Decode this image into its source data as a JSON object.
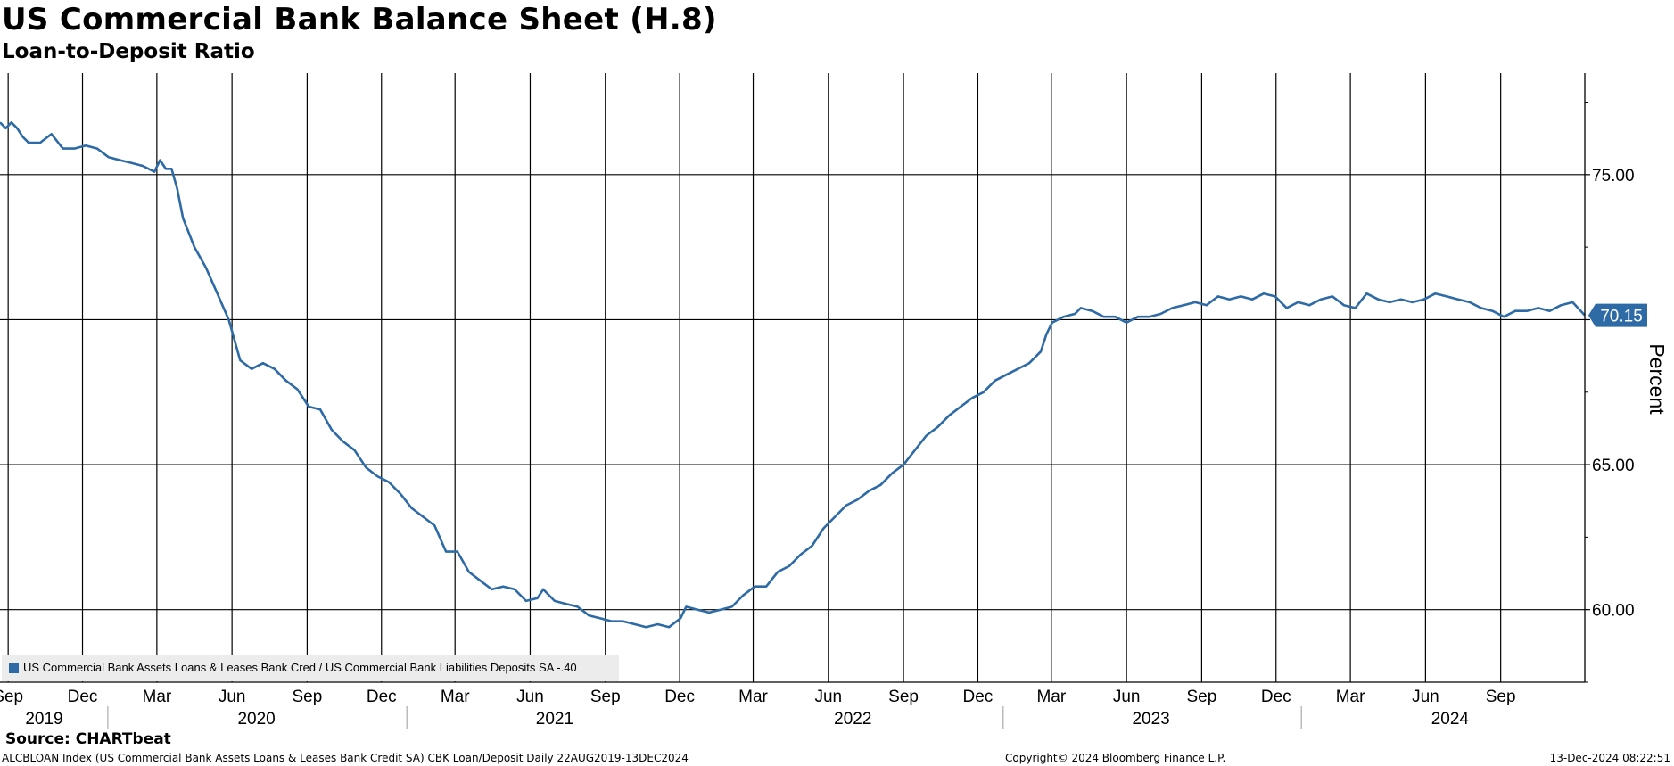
{
  "header": {
    "title": "US Commercial Bank Balance Sheet (H.8)",
    "subtitle": "Loan-to-Deposit Ratio"
  },
  "footer": {
    "source": "Source: CHARTbeat",
    "left": "ALCBLOAN Index (US Commercial Bank Assets Loans & Leases Bank Credit SA) CBK Loan/Deposit  Daily 22AUG2019-13DEC2024",
    "center": "Copyright© 2024 Bloomberg Finance L.P.",
    "right": "13-Dec-2024 08:22:51"
  },
  "colors": {
    "series": "#2e6ba6",
    "grid": "#000000",
    "legend_bg": "#ececec",
    "last_value_bg": "#2e6ba6"
  },
  "chart_data": {
    "type": "line",
    "ylabel": "Percent",
    "ylim": [
      57.5,
      78.5
    ],
    "yticks": [
      60,
      65,
      70,
      75
    ],
    "ytick_labels": [
      "60.00",
      "65.00",
      "70.00",
      "75.00"
    ],
    "xlim": [
      "2019-08-22",
      "2024-12-13"
    ],
    "month_ticks": [
      {
        "date": "2019-09-01",
        "label": "Sep"
      },
      {
        "date": "2019-12-01",
        "label": "Dec"
      },
      {
        "date": "2020-03-01",
        "label": "Mar"
      },
      {
        "date": "2020-06-01",
        "label": "Jun"
      },
      {
        "date": "2020-09-01",
        "label": "Sep"
      },
      {
        "date": "2020-12-01",
        "label": "Dec"
      },
      {
        "date": "2021-03-01",
        "label": "Mar"
      },
      {
        "date": "2021-06-01",
        "label": "Jun"
      },
      {
        "date": "2021-09-01",
        "label": "Sep"
      },
      {
        "date": "2021-12-01",
        "label": "Dec"
      },
      {
        "date": "2022-03-01",
        "label": "Mar"
      },
      {
        "date": "2022-06-01",
        "label": "Jun"
      },
      {
        "date": "2022-09-01",
        "label": "Sep"
      },
      {
        "date": "2022-12-01",
        "label": "Dec"
      },
      {
        "date": "2023-03-01",
        "label": "Mar"
      },
      {
        "date": "2023-06-01",
        "label": "Jun"
      },
      {
        "date": "2023-09-01",
        "label": "Sep"
      },
      {
        "date": "2023-12-01",
        "label": "Dec"
      },
      {
        "date": "2024-03-01",
        "label": "Mar"
      },
      {
        "date": "2024-06-01",
        "label": "Jun"
      },
      {
        "date": "2024-09-01",
        "label": "Sep"
      }
    ],
    "year_labels": [
      {
        "date": "2019-10-15",
        "label": "2019"
      },
      {
        "date": "2020-07-01",
        "label": "2020"
      },
      {
        "date": "2021-07-01",
        "label": "2021"
      },
      {
        "date": "2022-07-01",
        "label": "2022"
      },
      {
        "date": "2023-07-01",
        "label": "2023"
      },
      {
        "date": "2024-07-01",
        "label": "2024"
      }
    ],
    "year_separators": [
      "2020-01-01",
      "2021-01-01",
      "2022-01-01",
      "2023-01-01",
      "2024-01-01"
    ],
    "last_value_label": "70.15",
    "legend": "US Commercial Bank Assets Loans & Leases Bank Cred / US Commercial Bank Liabilities Deposits SA -.40",
    "series": [
      {
        "name": "US Commercial Bank Assets Loans & Leases Bank Cred / US Commercial Bank Liabilities Deposits SA -.40",
        "points": [
          [
            "2019-08-22",
            76.8
          ],
          [
            "2019-08-29",
            76.6
          ],
          [
            "2019-09-05",
            76.8
          ],
          [
            "2019-09-12",
            76.6
          ],
          [
            "2019-09-19",
            76.3
          ],
          [
            "2019-09-26",
            76.1
          ],
          [
            "2019-10-10",
            76.1
          ],
          [
            "2019-10-24",
            76.4
          ],
          [
            "2019-11-07",
            75.9
          ],
          [
            "2019-11-21",
            75.9
          ],
          [
            "2019-12-05",
            76.0
          ],
          [
            "2019-12-19",
            75.9
          ],
          [
            "2020-01-02",
            75.6
          ],
          [
            "2020-01-16",
            75.5
          ],
          [
            "2020-01-30",
            75.4
          ],
          [
            "2020-02-13",
            75.3
          ],
          [
            "2020-02-27",
            75.1
          ],
          [
            "2020-03-05",
            75.5
          ],
          [
            "2020-03-12",
            75.2
          ],
          [
            "2020-03-19",
            75.2
          ],
          [
            "2020-03-26",
            74.5
          ],
          [
            "2020-04-02",
            73.5
          ],
          [
            "2020-04-16",
            72.5
          ],
          [
            "2020-04-30",
            71.8
          ],
          [
            "2020-05-14",
            70.9
          ],
          [
            "2020-05-28",
            70.0
          ],
          [
            "2020-06-11",
            68.6
          ],
          [
            "2020-06-25",
            68.3
          ],
          [
            "2020-07-09",
            68.5
          ],
          [
            "2020-07-23",
            68.3
          ],
          [
            "2020-08-06",
            67.9
          ],
          [
            "2020-08-20",
            67.6
          ],
          [
            "2020-09-03",
            67.0
          ],
          [
            "2020-09-17",
            66.9
          ],
          [
            "2020-10-01",
            66.2
          ],
          [
            "2020-10-15",
            65.8
          ],
          [
            "2020-10-29",
            65.5
          ],
          [
            "2020-11-12",
            64.9
          ],
          [
            "2020-11-26",
            64.6
          ],
          [
            "2020-12-10",
            64.4
          ],
          [
            "2020-12-24",
            64.0
          ],
          [
            "2021-01-07",
            63.5
          ],
          [
            "2021-01-21",
            63.2
          ],
          [
            "2021-02-04",
            62.9
          ],
          [
            "2021-02-18",
            62.0
          ],
          [
            "2021-03-04",
            62.0
          ],
          [
            "2021-03-18",
            61.3
          ],
          [
            "2021-04-01",
            61.0
          ],
          [
            "2021-04-15",
            60.7
          ],
          [
            "2021-04-29",
            60.8
          ],
          [
            "2021-05-13",
            60.7
          ],
          [
            "2021-05-27",
            60.3
          ],
          [
            "2021-06-10",
            60.4
          ],
          [
            "2021-06-17",
            60.7
          ],
          [
            "2021-07-01",
            60.3
          ],
          [
            "2021-07-15",
            60.2
          ],
          [
            "2021-07-29",
            60.1
          ],
          [
            "2021-08-12",
            59.8
          ],
          [
            "2021-08-26",
            59.7
          ],
          [
            "2021-09-09",
            59.6
          ],
          [
            "2021-09-23",
            59.6
          ],
          [
            "2021-10-07",
            59.5
          ],
          [
            "2021-10-21",
            59.4
          ],
          [
            "2021-11-04",
            59.5
          ],
          [
            "2021-11-18",
            59.4
          ],
          [
            "2021-12-02",
            59.7
          ],
          [
            "2021-12-09",
            60.1
          ],
          [
            "2021-12-23",
            60.0
          ],
          [
            "2022-01-06",
            59.9
          ],
          [
            "2022-01-20",
            60.0
          ],
          [
            "2022-02-03",
            60.1
          ],
          [
            "2022-02-17",
            60.5
          ],
          [
            "2022-03-03",
            60.8
          ],
          [
            "2022-03-17",
            60.8
          ],
          [
            "2022-03-31",
            61.3
          ],
          [
            "2022-04-14",
            61.5
          ],
          [
            "2022-04-28",
            61.9
          ],
          [
            "2022-05-12",
            62.2
          ],
          [
            "2022-05-26",
            62.8
          ],
          [
            "2022-06-09",
            63.2
          ],
          [
            "2022-06-23",
            63.6
          ],
          [
            "2022-07-07",
            63.8
          ],
          [
            "2022-07-21",
            64.1
          ],
          [
            "2022-08-04",
            64.3
          ],
          [
            "2022-08-18",
            64.7
          ],
          [
            "2022-09-01",
            65.0
          ],
          [
            "2022-09-15",
            65.5
          ],
          [
            "2022-09-29",
            66.0
          ],
          [
            "2022-10-13",
            66.3
          ],
          [
            "2022-10-27",
            66.7
          ],
          [
            "2022-11-10",
            67.0
          ],
          [
            "2022-11-24",
            67.3
          ],
          [
            "2022-12-08",
            67.5
          ],
          [
            "2022-12-22",
            67.9
          ],
          [
            "2023-01-05",
            68.1
          ],
          [
            "2023-01-19",
            68.3
          ],
          [
            "2023-02-02",
            68.5
          ],
          [
            "2023-02-16",
            68.9
          ],
          [
            "2023-02-23",
            69.5
          ],
          [
            "2023-03-02",
            69.9
          ],
          [
            "2023-03-16",
            70.1
          ],
          [
            "2023-03-30",
            70.2
          ],
          [
            "2023-04-06",
            70.4
          ],
          [
            "2023-04-20",
            70.3
          ],
          [
            "2023-05-04",
            70.1
          ],
          [
            "2023-05-18",
            70.1
          ],
          [
            "2023-06-01",
            69.9
          ],
          [
            "2023-06-15",
            70.1
          ],
          [
            "2023-06-29",
            70.1
          ],
          [
            "2023-07-13",
            70.2
          ],
          [
            "2023-07-27",
            70.4
          ],
          [
            "2023-08-10",
            70.5
          ],
          [
            "2023-08-24",
            70.6
          ],
          [
            "2023-09-07",
            70.5
          ],
          [
            "2023-09-21",
            70.8
          ],
          [
            "2023-10-05",
            70.7
          ],
          [
            "2023-10-19",
            70.8
          ],
          [
            "2023-11-02",
            70.7
          ],
          [
            "2023-11-16",
            70.9
          ],
          [
            "2023-11-30",
            70.8
          ],
          [
            "2023-12-14",
            70.4
          ],
          [
            "2023-12-28",
            70.6
          ],
          [
            "2024-01-11",
            70.5
          ],
          [
            "2024-01-25",
            70.7
          ],
          [
            "2024-02-08",
            70.8
          ],
          [
            "2024-02-22",
            70.5
          ],
          [
            "2024-03-07",
            70.4
          ],
          [
            "2024-03-21",
            70.9
          ],
          [
            "2024-04-04",
            70.7
          ],
          [
            "2024-04-18",
            70.6
          ],
          [
            "2024-05-02",
            70.7
          ],
          [
            "2024-05-16",
            70.6
          ],
          [
            "2024-05-30",
            70.7
          ],
          [
            "2024-06-13",
            70.9
          ],
          [
            "2024-06-27",
            70.8
          ],
          [
            "2024-07-11",
            70.7
          ],
          [
            "2024-07-25",
            70.6
          ],
          [
            "2024-08-08",
            70.4
          ],
          [
            "2024-08-22",
            70.3
          ],
          [
            "2024-09-05",
            70.1
          ],
          [
            "2024-09-19",
            70.3
          ],
          [
            "2024-10-03",
            70.3
          ],
          [
            "2024-10-17",
            70.4
          ],
          [
            "2024-10-31",
            70.3
          ],
          [
            "2024-11-14",
            70.5
          ],
          [
            "2024-11-28",
            70.6
          ],
          [
            "2024-12-13",
            70.15
          ]
        ]
      }
    ]
  }
}
